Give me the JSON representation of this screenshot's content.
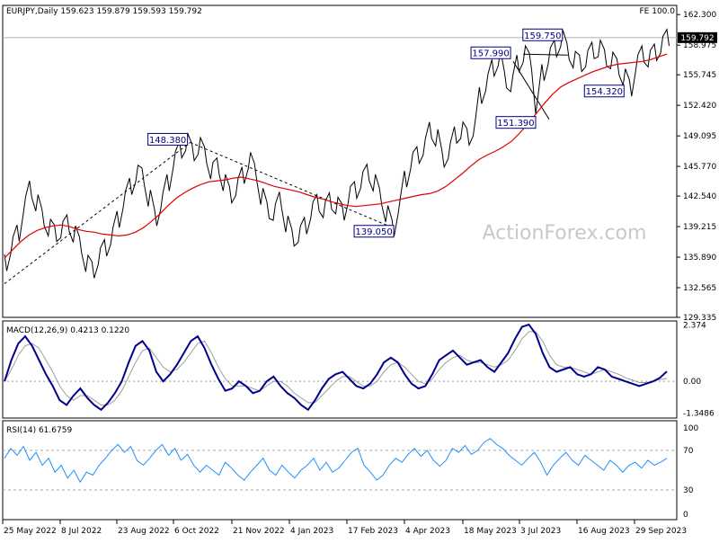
{
  "header": {
    "symbol_line": "EURJPY,Daily  159.623 159.879 159.593 159.792",
    "fe_label": "FE 100.0"
  },
  "watermark": "ActionForex.com",
  "current_price": "159.792",
  "colors": {
    "price": "#000000",
    "ma": "#e00000",
    "macd": "#00008b",
    "macd_signal": "#9e9e9e",
    "rsi": "#1e90ff",
    "annotation_box": "#000080",
    "grid_line": "#b0b0b0"
  },
  "chart_data": [
    {
      "type": "line",
      "panel": "price",
      "yticks": [
        "162.300",
        "158.975",
        "155.745",
        "152.420",
        "149.095",
        "145.770",
        "142.540",
        "139.215",
        "135.890",
        "132.565",
        "129.335"
      ],
      "ylim": [
        129.335,
        163.3
      ],
      "xlabels": [
        "25 May 2022",
        "8 Jul 2022",
        "23 Aug 2022",
        "6 Oct 2022",
        "21 Nov 2022",
        "4 Jan 2023",
        "17 Feb 2023",
        "4 Apr 2023",
        "18 May 2023",
        "3 Jul 2023",
        "16 Aug 2023",
        "29 Sep 2023"
      ],
      "series": [
        {
          "role": "price",
          "values": [
            135.3,
            137.2,
            138.5,
            141.5,
            143.3,
            141.8,
            140.2,
            139.1,
            138.5,
            138.9,
            139.6,
            138.4,
            137.2,
            135.2,
            134.5,
            136.0,
            136.9,
            138.2,
            140.0,
            142.2,
            143.6,
            145.0,
            144.7,
            142.3,
            140.2,
            142.0,
            144.0,
            146.5,
            147.6,
            148.4,
            147.3,
            148.0,
            147.0,
            145.3,
            145.8,
            144.0,
            142.7,
            143.5,
            144.8,
            146.4,
            145.2,
            142.5,
            141.0,
            140.8,
            142.1,
            139.5,
            138.0,
            138.4,
            139.3,
            141.0,
            141.8,
            141.1,
            142.0,
            141.5,
            140.8,
            142.7,
            143.2,
            144.3,
            145.1,
            144.0,
            142.5,
            140.6,
            139.1,
            141.5,
            144.4,
            146.4,
            147.0,
            147.9,
            149.7,
            148.9,
            146.6,
            147.5,
            149.2,
            149.7,
            149.0,
            150.0,
            153.5,
            154.9,
            156.5,
            157.6,
            155.2,
            154.8,
            157.0,
            158.0,
            157.2,
            152.4,
            156.0,
            157.8,
            158.6,
            159.7,
            158.3,
            157.4,
            157.0,
            157.5,
            158.4,
            158.6,
            157.6,
            157.3,
            156.6,
            155.5,
            154.3,
            157.0,
            158.0,
            157.5,
            158.2,
            159.0,
            159.79
          ]
        },
        {
          "role": "moving_average",
          "values": [
            135.8,
            136.7,
            137.6,
            138.3,
            138.8,
            139.1,
            139.3,
            139.4,
            139.2,
            138.9,
            138.7,
            138.6,
            138.4,
            138.3,
            138.2,
            138.3,
            138.6,
            139.1,
            139.8,
            140.6,
            141.5,
            142.3,
            142.9,
            143.4,
            143.8,
            144.1,
            144.2,
            144.3,
            144.5,
            144.6,
            144.4,
            144.2,
            143.9,
            143.6,
            143.4,
            143.2,
            143.0,
            142.7,
            142.4,
            142.2,
            141.9,
            141.7,
            141.5,
            141.4,
            141.5,
            141.6,
            141.7,
            141.9,
            142.1,
            142.3,
            142.5,
            142.7,
            142.8,
            143.1,
            143.6,
            144.3,
            145.0,
            145.8,
            146.5,
            147.0,
            147.4,
            147.9,
            148.5,
            149.4,
            150.4,
            151.5,
            152.6,
            153.6,
            154.4,
            154.9,
            155.3,
            155.7,
            156.1,
            156.4,
            156.7,
            156.9,
            157.0,
            157.1,
            157.2,
            157.4,
            157.7,
            158.0
          ]
        }
      ],
      "annotations": [
        {
          "text": "148.380",
          "x_index": 29,
          "value": 148.38
        },
        {
          "text": "139.050",
          "x_index": 62,
          "value": 139.05
        },
        {
          "text": "157.990",
          "x_index": 83,
          "value": 157.99
        },
        {
          "text": "151.390",
          "x_index": 85,
          "value": 151.39
        },
        {
          "text": "159.750",
          "x_index": 89,
          "value": 159.75
        },
        {
          "text": "154.320",
          "x_index": 100,
          "value": 154.32
        }
      ]
    },
    {
      "type": "line",
      "panel": "macd",
      "title": "MACD(12,26,9) 0.4213 0.1220",
      "yticks": [
        "2.374",
        "0.00",
        "-1.3486"
      ],
      "ylim": [
        -1.55,
        2.55
      ],
      "series": [
        {
          "role": "macd",
          "values": [
            0.0,
            0.9,
            1.6,
            1.9,
            1.5,
            0.9,
            0.3,
            -0.2,
            -0.8,
            -1.0,
            -0.6,
            -0.3,
            -0.7,
            -1.0,
            -1.2,
            -0.9,
            -0.5,
            0.0,
            0.8,
            1.5,
            1.7,
            1.3,
            0.4,
            0.0,
            0.3,
            0.7,
            1.2,
            1.7,
            1.9,
            1.4,
            0.7,
            0.1,
            -0.4,
            -0.3,
            0.0,
            -0.2,
            -0.5,
            -0.4,
            0.0,
            0.2,
            -0.2,
            -0.5,
            -0.7,
            -1.0,
            -1.2,
            -0.8,
            -0.3,
            0.1,
            0.3,
            0.4,
            0.1,
            -0.2,
            -0.3,
            -0.1,
            0.3,
            0.8,
            1.0,
            0.8,
            0.3,
            -0.1,
            -0.3,
            -0.2,
            0.3,
            0.9,
            1.1,
            1.3,
            1.0,
            0.7,
            0.8,
            0.9,
            0.6,
            0.4,
            0.8,
            1.2,
            1.8,
            2.3,
            2.4,
            2.0,
            1.2,
            0.6,
            0.4,
            0.5,
            0.6,
            0.3,
            0.2,
            0.3,
            0.6,
            0.5,
            0.2,
            0.1,
            0.0,
            -0.1,
            -0.2,
            -0.1,
            0.0,
            0.15,
            0.42
          ]
        },
        {
          "role": "signal",
          "values": [
            0.0,
            0.5,
            1.1,
            1.5,
            1.6,
            1.4,
            0.9,
            0.4,
            -0.2,
            -0.6,
            -0.8,
            -0.6,
            -0.6,
            -0.8,
            -1.0,
            -1.0,
            -0.8,
            -0.4,
            0.2,
            0.8,
            1.3,
            1.4,
            1.0,
            0.6,
            0.4,
            0.5,
            0.8,
            1.2,
            1.6,
            1.7,
            1.2,
            0.6,
            0.1,
            -0.2,
            -0.2,
            -0.2,
            -0.3,
            -0.4,
            -0.2,
            0.0,
            0.0,
            -0.2,
            -0.5,
            -0.7,
            -0.9,
            -0.9,
            -0.6,
            -0.3,
            0.0,
            0.2,
            0.2,
            0.0,
            -0.2,
            -0.2,
            0.0,
            0.4,
            0.7,
            0.8,
            0.6,
            0.3,
            0.0,
            -0.1,
            0.1,
            0.5,
            0.8,
            1.0,
            1.1,
            0.9,
            0.8,
            0.8,
            0.7,
            0.6,
            0.7,
            0.9,
            1.3,
            1.8,
            2.1,
            2.1,
            1.7,
            1.1,
            0.7,
            0.6,
            0.6,
            0.5,
            0.4,
            0.3,
            0.4,
            0.5,
            0.4,
            0.3,
            0.15,
            0.05,
            -0.05,
            -0.05,
            0.0,
            0.08,
            0.12
          ]
        }
      ]
    },
    {
      "type": "line",
      "panel": "rsi",
      "title": "RSI(14) 61.6759",
      "yticks": [
        "100",
        "70",
        "30",
        "0"
      ],
      "ylim": [
        0,
        100
      ],
      "series": [
        {
          "role": "rsi",
          "values": [
            62,
            72,
            65,
            74,
            60,
            68,
            55,
            62,
            48,
            55,
            42,
            50,
            38,
            48,
            45,
            55,
            62,
            70,
            76,
            68,
            74,
            60,
            55,
            62,
            70,
            76,
            65,
            72,
            60,
            66,
            55,
            48,
            55,
            50,
            45,
            58,
            52,
            45,
            40,
            48,
            55,
            62,
            50,
            45,
            55,
            48,
            42,
            50,
            55,
            62,
            50,
            58,
            48,
            52,
            60,
            68,
            72,
            55,
            48,
            40,
            45,
            55,
            62,
            58,
            66,
            72,
            64,
            70,
            60,
            54,
            60,
            72,
            68,
            75,
            66,
            70,
            78,
            82,
            76,
            72,
            65,
            60,
            55,
            62,
            68,
            58,
            45,
            55,
            62,
            68,
            60,
            55,
            65,
            60,
            55,
            50,
            60,
            55,
            48,
            55,
            58,
            52,
            60,
            55,
            58,
            62
          ]
        }
      ]
    }
  ]
}
